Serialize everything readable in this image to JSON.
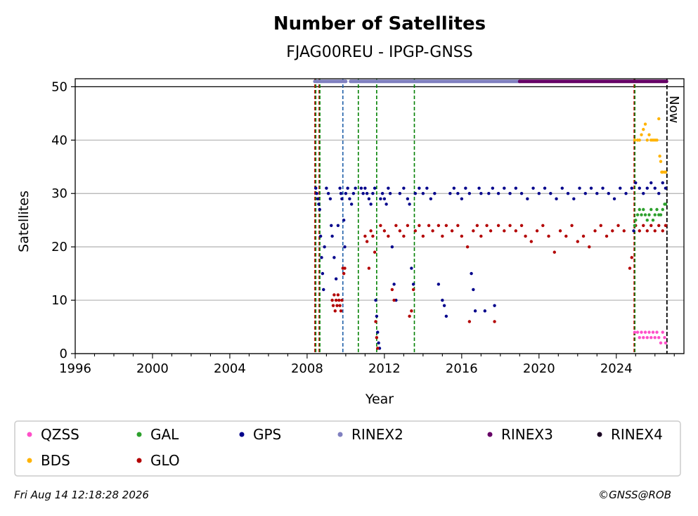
{
  "chart_data": {
    "type": "scatter",
    "title": "Number of Satellites",
    "subtitle": "FJAG00REU - IPGP-GNSS",
    "xlabel": "Year",
    "ylabel": "Satellites",
    "xlim": [
      1996,
      2027.5
    ],
    "ylim": [
      0,
      51.5
    ],
    "xticks": [
      1996,
      2000,
      2004,
      2008,
      2012,
      2016,
      2020,
      2024
    ],
    "yticks": [
      0,
      10,
      20,
      30,
      40,
      50
    ],
    "grid": "horizontal",
    "legend_position": "bottom",
    "now_label": "Now",
    "now_x": 2026.62,
    "vlines": [
      {
        "x": 2008.4,
        "color": "#d40000"
      },
      {
        "x": 2008.45,
        "color": "#008000"
      },
      {
        "x": 2008.62,
        "color": "#d40000"
      },
      {
        "x": 2008.66,
        "color": "#008000"
      },
      {
        "x": 2009.85,
        "color": "#1f5fa8"
      },
      {
        "x": 2010.65,
        "color": "#008000"
      },
      {
        "x": 2011.6,
        "color": "#008000"
      },
      {
        "x": 2013.55,
        "color": "#008000"
      },
      {
        "x": 2024.92,
        "color": "#d40000"
      },
      {
        "x": 2024.96,
        "color": "#008000"
      }
    ],
    "rinex_bars": [
      {
        "name": "RINEX2",
        "y": 51,
        "segments": [
          [
            2008.4,
            2010.0
          ],
          [
            2010.25,
            2019.0
          ]
        ]
      },
      {
        "name": "RINEX3",
        "y": 51,
        "segments": [
          [
            2019.0,
            2026.6
          ]
        ]
      }
    ],
    "series": [
      {
        "name": "QZSS",
        "color": "#ff4fc8"
      },
      {
        "name": "GAL",
        "color": "#2ca02c"
      },
      {
        "name": "GPS",
        "color": "#00008b"
      },
      {
        "name": "RINEX2",
        "color": "#8080c0"
      },
      {
        "name": "RINEX3",
        "color": "#660066"
      },
      {
        "name": "RINEX4",
        "color": "#1a0022"
      },
      {
        "name": "BDS",
        "color": "#ffb300"
      },
      {
        "name": "GLO",
        "color": "#b30000"
      }
    ],
    "scatter_points": {
      "GPS": [
        [
          2008.45,
          31
        ],
        [
          2008.5,
          30
        ],
        [
          2008.55,
          29
        ],
        [
          2008.6,
          28
        ],
        [
          2008.65,
          27
        ],
        [
          2008.7,
          22
        ],
        [
          2008.75,
          18
        ],
        [
          2008.8,
          15
        ],
        [
          2008.85,
          12
        ],
        [
          2008.9,
          20
        ],
        [
          2009.0,
          31
        ],
        [
          2009.1,
          30
        ],
        [
          2009.2,
          29
        ],
        [
          2009.25,
          24
        ],
        [
          2009.3,
          22
        ],
        [
          2009.4,
          18
        ],
        [
          2009.5,
          14
        ],
        [
          2009.6,
          24
        ],
        [
          2009.7,
          31
        ],
        [
          2009.75,
          30
        ],
        [
          2009.8,
          29
        ],
        [
          2009.9,
          25
        ],
        [
          2009.95,
          20
        ],
        [
          2010.0,
          30
        ],
        [
          2010.1,
          31
        ],
        [
          2010.2,
          29
        ],
        [
          2010.3,
          28
        ],
        [
          2010.4,
          30
        ],
        [
          2010.5,
          31
        ],
        [
          2010.8,
          31
        ],
        [
          2010.9,
          30
        ],
        [
          2011.0,
          31
        ],
        [
          2011.1,
          30
        ],
        [
          2011.2,
          29
        ],
        [
          2011.3,
          28
        ],
        [
          2011.4,
          30
        ],
        [
          2011.5,
          31
        ],
        [
          2011.55,
          10
        ],
        [
          2011.6,
          7
        ],
        [
          2011.65,
          4
        ],
        [
          2011.7,
          2
        ],
        [
          2011.75,
          1
        ],
        [
          2011.8,
          29
        ],
        [
          2011.9,
          30
        ],
        [
          2012.0,
          29
        ],
        [
          2012.1,
          28
        ],
        [
          2012.2,
          31
        ],
        [
          2012.3,
          30
        ],
        [
          2012.4,
          20
        ],
        [
          2012.5,
          13
        ],
        [
          2012.6,
          10
        ],
        [
          2012.8,
          30
        ],
        [
          2013.0,
          31
        ],
        [
          2013.2,
          29
        ],
        [
          2013.3,
          28
        ],
        [
          2013.4,
          16
        ],
        [
          2013.5,
          13
        ],
        [
          2013.6,
          30
        ],
        [
          2013.8,
          31
        ],
        [
          2014.0,
          30
        ],
        [
          2014.2,
          31
        ],
        [
          2014.4,
          29
        ],
        [
          2014.6,
          30
        ],
        [
          2014.8,
          13
        ],
        [
          2015.0,
          10
        ],
        [
          2015.1,
          9
        ],
        [
          2015.2,
          7
        ],
        [
          2015.4,
          30
        ],
        [
          2015.6,
          31
        ],
        [
          2015.8,
          30
        ],
        [
          2016.0,
          29
        ],
        [
          2016.2,
          31
        ],
        [
          2016.4,
          30
        ],
        [
          2016.5,
          15
        ],
        [
          2016.6,
          12
        ],
        [
          2016.7,
          8
        ],
        [
          2016.9,
          31
        ],
        [
          2017.0,
          30
        ],
        [
          2017.2,
          8
        ],
        [
          2017.4,
          30
        ],
        [
          2017.6,
          31
        ],
        [
          2017.7,
          9
        ],
        [
          2017.9,
          30
        ],
        [
          2018.2,
          31
        ],
        [
          2018.5,
          30
        ],
        [
          2018.8,
          31
        ],
        [
          2019.1,
          30
        ],
        [
          2019.4,
          29
        ],
        [
          2019.7,
          31
        ],
        [
          2020.0,
          30
        ],
        [
          2020.3,
          31
        ],
        [
          2020.6,
          30
        ],
        [
          2020.9,
          29
        ],
        [
          2021.2,
          31
        ],
        [
          2021.5,
          30
        ],
        [
          2021.8,
          29
        ],
        [
          2022.1,
          31
        ],
        [
          2022.4,
          30
        ],
        [
          2022.7,
          31
        ],
        [
          2023.0,
          30
        ],
        [
          2023.3,
          31
        ],
        [
          2023.6,
          30
        ],
        [
          2023.9,
          29
        ],
        [
          2024.2,
          31
        ],
        [
          2024.5,
          30
        ],
        [
          2024.8,
          31
        ],
        [
          2024.9,
          23
        ],
        [
          2025.0,
          32
        ],
        [
          2025.2,
          31
        ],
        [
          2025.4,
          30
        ],
        [
          2025.6,
          31
        ],
        [
          2025.8,
          32
        ],
        [
          2026.0,
          31
        ],
        [
          2026.2,
          30
        ],
        [
          2026.4,
          32
        ],
        [
          2026.55,
          31
        ]
      ],
      "GLO": [
        [
          2009.3,
          10
        ],
        [
          2009.35,
          9
        ],
        [
          2009.4,
          11
        ],
        [
          2009.45,
          8
        ],
        [
          2009.5,
          10
        ],
        [
          2009.55,
          9
        ],
        [
          2009.6,
          11
        ],
        [
          2009.65,
          10
        ],
        [
          2009.7,
          9
        ],
        [
          2009.75,
          8
        ],
        [
          2009.8,
          10
        ],
        [
          2009.85,
          16
        ],
        [
          2009.9,
          15
        ],
        [
          2009.95,
          16
        ],
        [
          2011.0,
          22
        ],
        [
          2011.1,
          21
        ],
        [
          2011.2,
          16
        ],
        [
          2011.3,
          23
        ],
        [
          2011.4,
          22
        ],
        [
          2011.5,
          19
        ],
        [
          2011.55,
          6
        ],
        [
          2011.6,
          3
        ],
        [
          2011.65,
          1
        ],
        [
          2011.8,
          24
        ],
        [
          2012.0,
          23
        ],
        [
          2012.2,
          22
        ],
        [
          2012.4,
          12
        ],
        [
          2012.5,
          10
        ],
        [
          2012.6,
          24
        ],
        [
          2012.8,
          23
        ],
        [
          2013.0,
          22
        ],
        [
          2013.2,
          24
        ],
        [
          2013.3,
          7
        ],
        [
          2013.4,
          8
        ],
        [
          2013.5,
          12
        ],
        [
          2013.6,
          23
        ],
        [
          2013.8,
          24
        ],
        [
          2014.0,
          22
        ],
        [
          2014.3,
          24
        ],
        [
          2014.5,
          23
        ],
        [
          2014.8,
          24
        ],
        [
          2015.0,
          22
        ],
        [
          2015.2,
          24
        ],
        [
          2015.5,
          23
        ],
        [
          2015.8,
          24
        ],
        [
          2016.0,
          22
        ],
        [
          2016.3,
          20
        ],
        [
          2016.4,
          6
        ],
        [
          2016.6,
          23
        ],
        [
          2016.8,
          24
        ],
        [
          2017.0,
          22
        ],
        [
          2017.3,
          24
        ],
        [
          2017.5,
          23
        ],
        [
          2017.7,
          6
        ],
        [
          2017.9,
          24
        ],
        [
          2018.2,
          23
        ],
        [
          2018.5,
          24
        ],
        [
          2018.8,
          23
        ],
        [
          2019.1,
          24
        ],
        [
          2019.3,
          22
        ],
        [
          2019.6,
          21
        ],
        [
          2019.9,
          23
        ],
        [
          2020.2,
          24
        ],
        [
          2020.5,
          22
        ],
        [
          2020.8,
          19
        ],
        [
          2021.1,
          23
        ],
        [
          2021.4,
          22
        ],
        [
          2021.7,
          24
        ],
        [
          2022.0,
          21
        ],
        [
          2022.3,
          22
        ],
        [
          2022.6,
          20
        ],
        [
          2022.9,
          23
        ],
        [
          2023.2,
          24
        ],
        [
          2023.5,
          22
        ],
        [
          2023.8,
          23
        ],
        [
          2024.1,
          24
        ],
        [
          2024.4,
          23
        ],
        [
          2024.7,
          16
        ],
        [
          2024.8,
          18
        ],
        [
          2025.0,
          24
        ],
        [
          2025.2,
          23
        ],
        [
          2025.4,
          24
        ],
        [
          2025.6,
          23
        ],
        [
          2025.8,
          24
        ],
        [
          2026.0,
          23
        ],
        [
          2026.2,
          24
        ],
        [
          2026.4,
          23
        ],
        [
          2026.55,
          24
        ]
      ],
      "GAL": [
        [
          2024.95,
          24
        ],
        [
          2025.0,
          25
        ],
        [
          2025.1,
          26
        ],
        [
          2025.2,
          27
        ],
        [
          2025.3,
          26
        ],
        [
          2025.4,
          27
        ],
        [
          2025.5,
          26
        ],
        [
          2025.6,
          25
        ],
        [
          2025.7,
          26
        ],
        [
          2025.8,
          27
        ],
        [
          2025.9,
          25
        ],
        [
          2026.0,
          26
        ],
        [
          2026.1,
          27
        ],
        [
          2026.2,
          26
        ],
        [
          2026.3,
          26
        ],
        [
          2026.4,
          27
        ],
        [
          2026.5,
          28
        ],
        [
          2026.55,
          28
        ]
      ],
      "BDS": [
        [
          2024.95,
          40
        ],
        [
          2025.1,
          40
        ],
        [
          2025.2,
          40
        ],
        [
          2025.3,
          41
        ],
        [
          2025.4,
          42
        ],
        [
          2025.5,
          43
        ],
        [
          2025.6,
          40
        ],
        [
          2025.7,
          41
        ],
        [
          2025.8,
          40
        ],
        [
          2025.9,
          40
        ],
        [
          2026.0,
          40
        ],
        [
          2026.1,
          40
        ],
        [
          2026.2,
          44
        ],
        [
          2026.25,
          37
        ],
        [
          2026.3,
          36
        ],
        [
          2026.35,
          34
        ],
        [
          2026.4,
          34
        ],
        [
          2026.5,
          34
        ],
        [
          2026.55,
          34
        ]
      ],
      "QZSS": [
        [
          2024.95,
          4
        ],
        [
          2025.1,
          4
        ],
        [
          2025.2,
          3
        ],
        [
          2025.3,
          4
        ],
        [
          2025.4,
          3
        ],
        [
          2025.5,
          4
        ],
        [
          2025.6,
          3
        ],
        [
          2025.7,
          4
        ],
        [
          2025.8,
          3
        ],
        [
          2025.9,
          4
        ],
        [
          2026.0,
          3
        ],
        [
          2026.1,
          4
        ],
        [
          2026.2,
          3
        ],
        [
          2026.3,
          2
        ],
        [
          2026.4,
          4
        ],
        [
          2026.5,
          3
        ],
        [
          2026.55,
          2
        ]
      ]
    }
  },
  "footer": {
    "timestamp": "Fri Aug 14 12:18:28 2026",
    "credit": "©GNSS@ROB"
  }
}
